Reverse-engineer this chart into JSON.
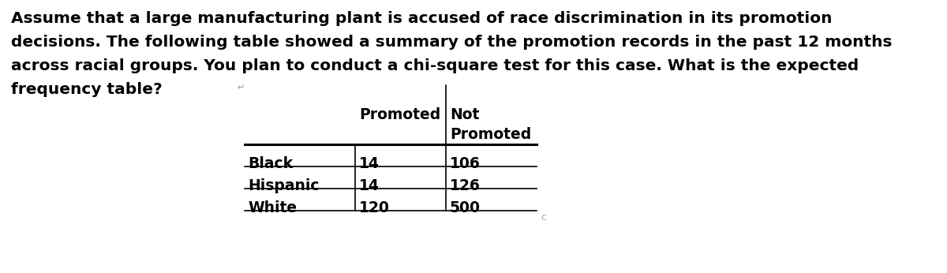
{
  "lines": [
    "Assume that a large manufacturing plant is accused of race discrimination in its promotion",
    "decisions. The following table showed a summary of the promotion records in the past 12 months",
    "across racial groups. You plan to conduct a chi-square test for this case. What is the expected",
    "frequency table?"
  ],
  "col_headers_line1": [
    "Promoted",
    "Not"
  ],
  "col_headers_line2": [
    "",
    "Promoted"
  ],
  "row_labels": [
    "Black",
    "Hispanic",
    "White"
  ],
  "table_data": [
    [
      "14",
      "106"
    ],
    [
      "14",
      "126"
    ],
    [
      "120",
      "500"
    ]
  ],
  "bg_color": "#ffffff",
  "text_color": "#000000",
  "font_size_para": 14.5,
  "font_size_table": 13.5
}
